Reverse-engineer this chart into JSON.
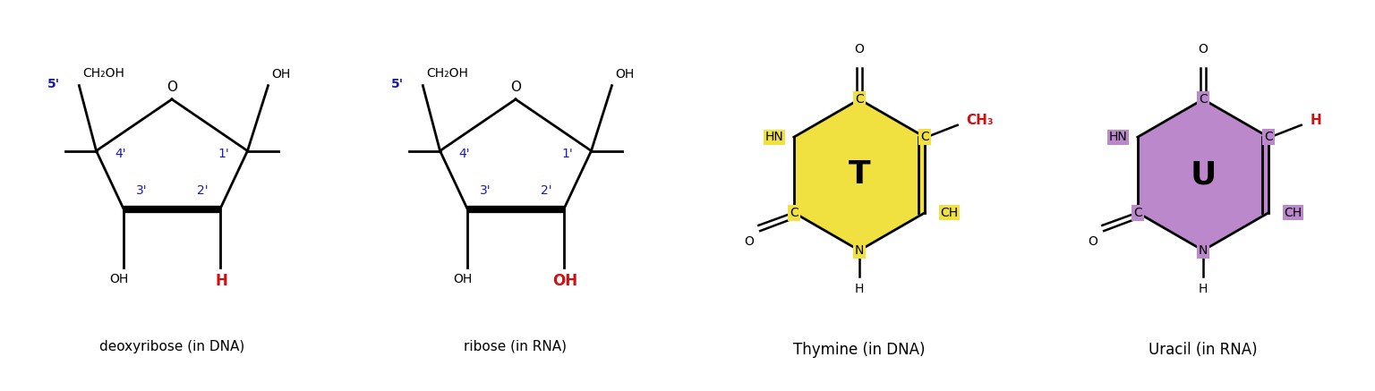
{
  "bg_color": "#ffffff",
  "blue_color": "#1a1aaa",
  "red_color": "#cc1111",
  "black_color": "#000000",
  "yellow_fill": "#f0e040",
  "purple_fill": "#bb88cc",
  "label_deoxyribose": "deoxyribose (in DNA)",
  "label_ribose": "ribose (in RNA)",
  "label_thymine": "Thymine (in DNA)",
  "label_uracil": "Uracil (in RNA)",
  "fig_width": 15.36,
  "fig_height": 4.37,
  "dpi": 100
}
